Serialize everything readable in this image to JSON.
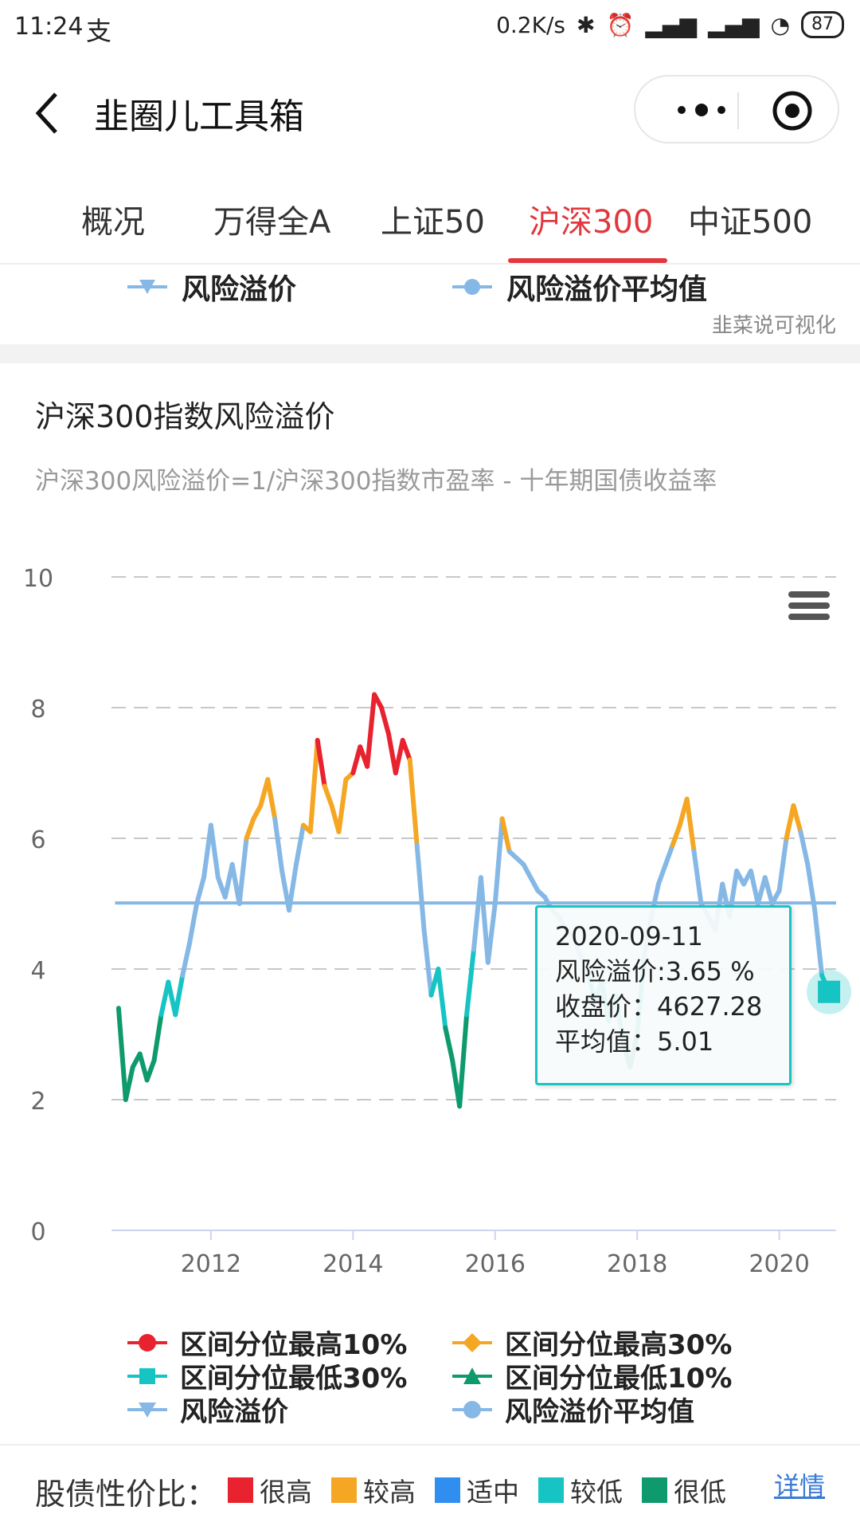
{
  "status_bar": {
    "time": "11:24",
    "net_speed": "0.2K/s",
    "battery": "87"
  },
  "nav": {
    "title": "韭圈儿工具箱"
  },
  "tabs": [
    {
      "label": "概况",
      "active": false
    },
    {
      "label": "万得全A",
      "active": false
    },
    {
      "label": "上证50",
      "active": false
    },
    {
      "label": "沪深300",
      "active": true
    },
    {
      "label": "中证500",
      "active": false
    }
  ],
  "top_legend": {
    "item1": "风险溢价",
    "item2": "风险溢价平均值",
    "credit": "韭菜说可视化"
  },
  "card": {
    "title": "沪深300指数风险溢价",
    "subtitle": "沪深300风险溢价=1/沪深300指数市盈率 - 十年期国债收益率"
  },
  "tooltip": {
    "date": "2020-09-11",
    "premium": "风险溢价:3.65 %",
    "close": "收盘价：4627.28",
    "avg": "平均值：5.01"
  },
  "bottom_legend": [
    {
      "label": "区间分位最高10%",
      "color": "#e8232f",
      "marker": "circle"
    },
    {
      "label": "区间分位最高30%",
      "color": "#f5a623",
      "marker": "diamond"
    },
    {
      "label": "区间分位最低30%",
      "color": "#17c4c4",
      "marker": "square"
    },
    {
      "label": "区间分位最低10%",
      "color": "#0f9a6e",
      "marker": "triangle"
    },
    {
      "label": "风险溢价",
      "color": "#86b8e6",
      "marker": "triangle-down"
    },
    {
      "label": "风险溢价平均值",
      "color": "#86b8e6",
      "marker": "circle"
    }
  ],
  "footer": {
    "label": "股债性价比：",
    "levels": [
      {
        "label": "很高",
        "color": "#e8232f"
      },
      {
        "label": "较高",
        "color": "#f5a623"
      },
      {
        "label": "适中",
        "color": "#2f8ef0"
      },
      {
        "label": "较低",
        "color": "#17c4c4"
      },
      {
        "label": "很低",
        "color": "#0f9a6e"
      }
    ],
    "details": "详情"
  },
  "chart_data": {
    "type": "line",
    "title": "",
    "xlabel": "",
    "ylabel": "",
    "xlim": [
      2010.6,
      2020.8
    ],
    "ylim": [
      0,
      10
    ],
    "yticks": [
      0,
      2,
      4,
      6,
      8,
      10
    ],
    "xticks": [
      2012,
      2014,
      2016,
      2018,
      2020
    ],
    "grid": true,
    "average": 5.01,
    "series": [
      {
        "name": "风险溢价",
        "x": [
          2010.7,
          2010.8,
          2010.9,
          2011.0,
          2011.1,
          2011.2,
          2011.3,
          2011.4,
          2011.5,
          2011.6,
          2011.7,
          2011.8,
          2011.9,
          2012.0,
          2012.1,
          2012.2,
          2012.3,
          2012.4,
          2012.5,
          2012.6,
          2012.7,
          2012.8,
          2012.9,
          2013.0,
          2013.1,
          2013.2,
          2013.3,
          2013.4,
          2013.5,
          2013.6,
          2013.7,
          2013.8,
          2013.9,
          2014.0,
          2014.1,
          2014.2,
          2014.3,
          2014.4,
          2014.5,
          2014.6,
          2014.7,
          2014.8,
          2014.9,
          2015.0,
          2015.1,
          2015.2,
          2015.3,
          2015.4,
          2015.5,
          2015.6,
          2015.7,
          2015.8,
          2015.9,
          2016.0,
          2016.1,
          2016.2,
          2016.3,
          2016.4,
          2016.5,
          2016.6,
          2016.7,
          2016.8,
          2016.9,
          2017.0,
          2017.1,
          2017.2,
          2017.3,
          2017.4,
          2017.5,
          2017.6,
          2017.7,
          2017.8,
          2017.9,
          2018.0,
          2018.1,
          2018.2,
          2018.3,
          2018.4,
          2018.5,
          2018.6,
          2018.7,
          2018.8,
          2018.9,
          2019.0,
          2019.1,
          2019.2,
          2019.3,
          2019.4,
          2019.5,
          2019.6,
          2019.7,
          2019.8,
          2019.9,
          2020.0,
          2020.1,
          2020.2,
          2020.3,
          2020.4,
          2020.5,
          2020.6,
          2020.7
        ],
        "y": [
          3.4,
          2.0,
          2.5,
          2.7,
          2.3,
          2.6,
          3.3,
          3.8,
          3.3,
          3.9,
          4.4,
          5.0,
          5.4,
          6.2,
          5.4,
          5.1,
          5.6,
          5.0,
          6.0,
          6.3,
          6.5,
          6.9,
          6.3,
          5.5,
          4.9,
          5.6,
          6.2,
          6.1,
          7.5,
          6.8,
          6.5,
          6.1,
          6.9,
          7.0,
          7.4,
          7.1,
          8.2,
          8.0,
          7.6,
          7.0,
          7.5,
          7.2,
          5.9,
          4.6,
          3.6,
          4.0,
          3.1,
          2.6,
          1.9,
          3.3,
          4.3,
          5.4,
          4.1,
          5.0,
          6.3,
          5.8,
          5.7,
          5.6,
          5.4,
          5.2,
          5.1,
          4.9,
          4.8,
          4.6,
          4.5,
          4.2,
          4.0,
          3.5,
          3.8,
          3.2,
          3.6,
          2.9,
          2.5,
          3.0,
          4.2,
          4.8,
          5.3,
          5.6,
          5.9,
          6.2,
          6.6,
          5.8,
          5.0,
          4.8,
          4.6,
          5.3,
          4.8,
          5.5,
          5.3,
          5.5,
          5.0,
          5.4,
          5.0,
          5.2,
          6.0,
          6.5,
          6.1,
          5.6,
          4.9,
          3.9,
          3.65
        ]
      },
      {
        "name": "风险溢价平均值",
        "value": 5.01
      }
    ]
  }
}
